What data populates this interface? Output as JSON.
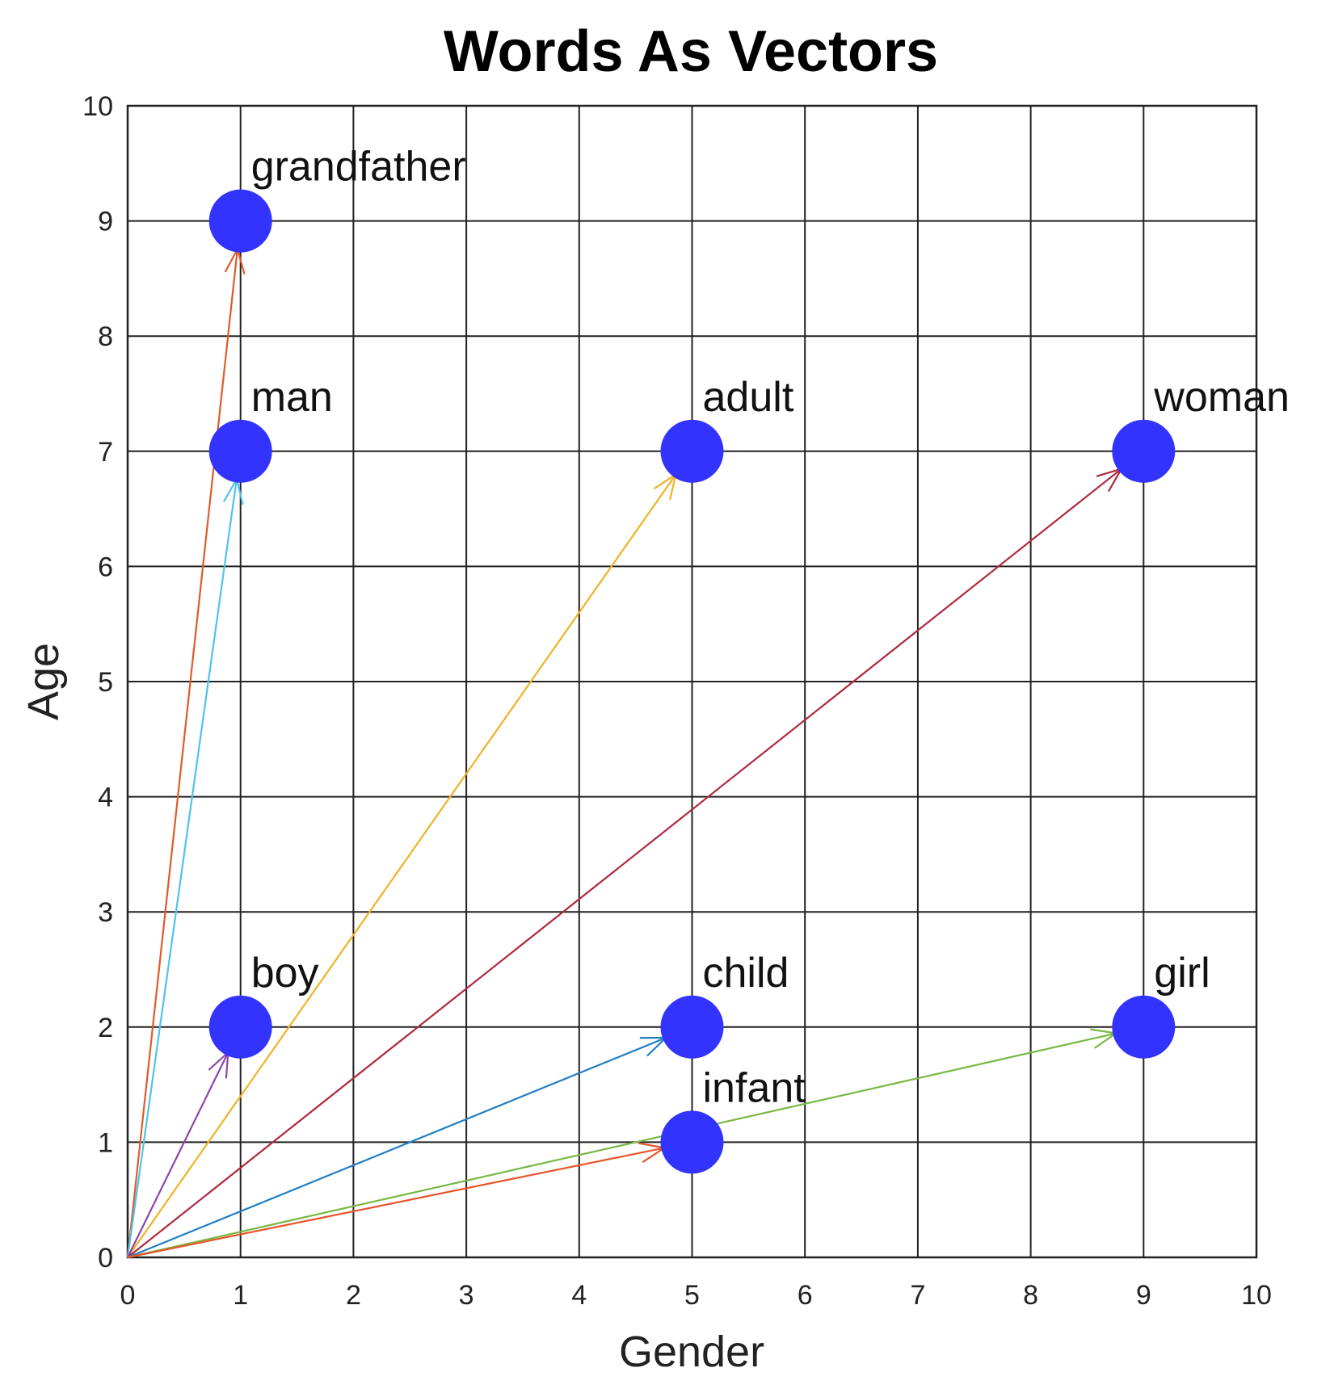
{
  "chart_data": {
    "type": "scatter",
    "title": "Words As Vectors",
    "xlabel": "Gender",
    "ylabel": "Age",
    "xlim": [
      0,
      10
    ],
    "ylim": [
      0,
      10
    ],
    "xticks": [
      0,
      1,
      2,
      3,
      4,
      5,
      6,
      7,
      8,
      9,
      10
    ],
    "yticks": [
      0,
      1,
      2,
      3,
      4,
      5,
      6,
      7,
      8,
      9,
      10
    ],
    "grid": true,
    "marker_color": "#3333ff",
    "points": [
      {
        "label": "grandfather",
        "x": 1,
        "y": 9,
        "arrow_color": "#e05a2b"
      },
      {
        "label": "man",
        "x": 1,
        "y": 7,
        "arrow_color": "#4ec3ee"
      },
      {
        "label": "adult",
        "x": 5,
        "y": 7,
        "arrow_color": "#f0b323"
      },
      {
        "label": "woman",
        "x": 9,
        "y": 7,
        "arrow_color": "#b0283f"
      },
      {
        "label": "boy",
        "x": 1,
        "y": 2,
        "arrow_color": "#8e44ad"
      },
      {
        "label": "child",
        "x": 5,
        "y": 2,
        "arrow_color": "#1f7fc4"
      },
      {
        "label": "girl",
        "x": 9,
        "y": 2,
        "arrow_color": "#77b843"
      },
      {
        "label": "infant",
        "x": 5,
        "y": 1,
        "arrow_color": "#e8542a"
      }
    ]
  }
}
